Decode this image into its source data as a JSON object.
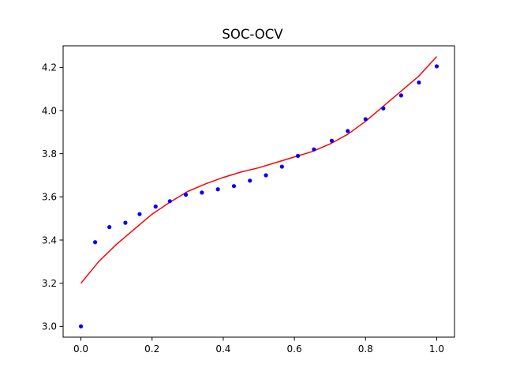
{
  "chart_data": {
    "type": "scatter",
    "title": "SOC-OCV",
    "xlabel": "",
    "ylabel": "",
    "xlim": [
      -0.05,
      1.05
    ],
    "ylim": [
      2.95,
      4.3
    ],
    "grid": false,
    "xticks": [
      0.0,
      0.2,
      0.4,
      0.6,
      0.8,
      1.0
    ],
    "yticks": [
      3.0,
      3.2,
      3.4,
      3.6,
      3.8,
      4.0,
      4.2
    ],
    "xtick_labels": [
      "0.0",
      "0.2",
      "0.4",
      "0.6",
      "0.8",
      "1.0"
    ],
    "ytick_labels": [
      "3.0",
      "3.2",
      "3.4",
      "3.6",
      "3.8",
      "4.0",
      "4.2"
    ],
    "series": [
      {
        "kind": "scatter",
        "color": "#0000ff",
        "x": [
          0.0,
          0.04,
          0.08,
          0.125,
          0.165,
          0.21,
          0.25,
          0.295,
          0.34,
          0.385,
          0.43,
          0.475,
          0.52,
          0.565,
          0.61,
          0.655,
          0.705,
          0.75,
          0.8,
          0.85,
          0.9,
          0.95,
          1.0
        ],
        "y": [
          3.0,
          3.39,
          3.46,
          3.48,
          3.52,
          3.555,
          3.58,
          3.61,
          3.62,
          3.635,
          3.65,
          3.675,
          3.7,
          3.74,
          3.79,
          3.82,
          3.86,
          3.905,
          3.96,
          4.01,
          4.07,
          4.13,
          4.205
        ]
      },
      {
        "kind": "line",
        "color": "#ff0000",
        "x": [
          0.0,
          0.05,
          0.1,
          0.15,
          0.2,
          0.25,
          0.3,
          0.35,
          0.4,
          0.45,
          0.5,
          0.55,
          0.6,
          0.65,
          0.7,
          0.75,
          0.8,
          0.85,
          0.9,
          0.95,
          1.0
        ],
        "y": [
          3.2,
          3.3,
          3.38,
          3.45,
          3.52,
          3.575,
          3.625,
          3.66,
          3.69,
          3.715,
          3.735,
          3.76,
          3.785,
          3.81,
          3.845,
          3.89,
          3.95,
          4.02,
          4.09,
          4.16,
          4.25
        ]
      }
    ]
  }
}
